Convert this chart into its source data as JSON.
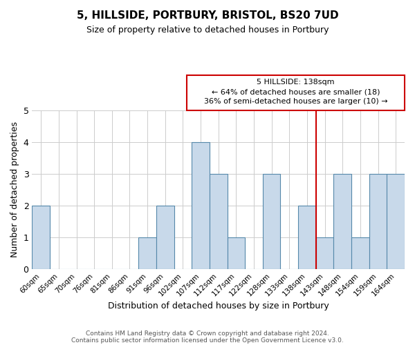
{
  "title_line1": "5, HILLSIDE, PORTBURY, BRISTOL, BS20 7UD",
  "title_line2": "Size of property relative to detached houses in Portbury",
  "xlabel": "Distribution of detached houses by size in Portbury",
  "ylabel": "Number of detached properties",
  "categories": [
    "60sqm",
    "65sqm",
    "70sqm",
    "76sqm",
    "81sqm",
    "86sqm",
    "91sqm",
    "96sqm",
    "102sqm",
    "107sqm",
    "112sqm",
    "117sqm",
    "122sqm",
    "128sqm",
    "133sqm",
    "138sqm",
    "143sqm",
    "148sqm",
    "154sqm",
    "159sqm",
    "164sqm"
  ],
  "values": [
    2,
    0,
    0,
    0,
    0,
    0,
    1,
    2,
    0,
    4,
    3,
    1,
    0,
    3,
    0,
    2,
    1,
    3,
    1,
    3,
    3
  ],
  "bar_color": "#c8d9ea",
  "bar_edge_color": "#5588aa",
  "reference_line_x_label": "138sqm",
  "reference_line_color": "#cc0000",
  "annotation_text_line1": "5 HILLSIDE: 138sqm",
  "annotation_text_line2": "← 64% of detached houses are smaller (18)",
  "annotation_text_line3": "36% of semi-detached houses are larger (10) →",
  "annotation_box_edge_color": "#cc0000",
  "ylim": [
    0,
    5
  ],
  "yticks": [
    0,
    1,
    2,
    3,
    4,
    5
  ],
  "footnote_line1": "Contains HM Land Registry data © Crown copyright and database right 2024.",
  "footnote_line2": "Contains public sector information licensed under the Open Government Licence v3.0.",
  "background_color": "#ffffff",
  "grid_color": "#cccccc"
}
